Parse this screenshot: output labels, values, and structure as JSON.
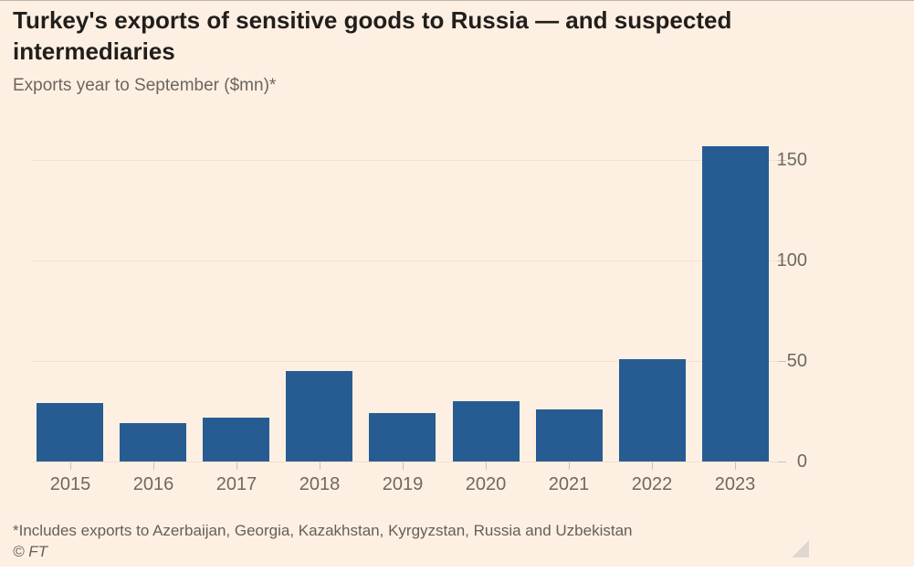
{
  "chart_data": {
    "type": "bar",
    "title": "Turkey's exports of sensitive goods to Russia — and suspected intermediaries",
    "subtitle": "Exports year to September ($mn)*",
    "categories": [
      "2015",
      "2016",
      "2017",
      "2018",
      "2019",
      "2020",
      "2021",
      "2022",
      "2023"
    ],
    "values": [
      29,
      19,
      22,
      45,
      24,
      30,
      26,
      51,
      157
    ],
    "xlabel": "",
    "ylabel": "",
    "yticks": [
      0,
      50,
      100,
      150
    ],
    "ylim": [
      0,
      165
    ],
    "grid": "horizontal",
    "legend": "none",
    "bar_color": "#275c92"
  },
  "footer": {
    "note": "*Includes exports to Azerbaijan, Georgia, Kazakhstan, Kyrgyzstan, Russia and Uzbekistan",
    "credit": "© FT"
  },
  "colors": {
    "background": "#fdf0e3",
    "bar": "#275c92",
    "gridline": "#f1e1d0",
    "tick": "#c9c0b7",
    "title_text": "#211e1b",
    "muted_text": "#6f6861"
  }
}
